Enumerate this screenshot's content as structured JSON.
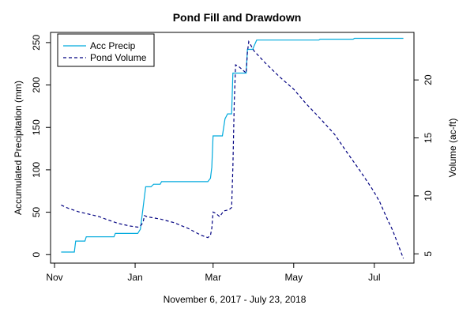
{
  "chart_data": {
    "type": "line",
    "title": "Pond Fill and Drawdown",
    "xlabel": "November 6, 2017 - July 23, 2018",
    "ylabel_left": "Accumulated Precipitation (mm)",
    "ylabel_right": "Volume (ac-ft)",
    "x_ticks": [
      "Nov",
      "Jan",
      "Mar",
      "May",
      "Jul"
    ],
    "x_tick_dates": [
      "2017-11-01",
      "2018-01-01",
      "2018-03-01",
      "2018-05-01",
      "2018-07-01"
    ],
    "y_left_ticks": [
      0,
      50,
      100,
      150,
      200,
      250
    ],
    "y_right_ticks": [
      5,
      10,
      15,
      20
    ],
    "xlim": [
      "2017-10-29",
      "2018-07-31"
    ],
    "ylim_left": [
      -10,
      262
    ],
    "ylim_right": [
      4.2,
      24.1
    ],
    "grid": false,
    "legend_position": "top-left",
    "series": [
      {
        "name": "Acc Precip",
        "axis": "left",
        "color": "#00aadd",
        "dash": "solid",
        "points": [
          [
            "2017-11-06",
            3
          ],
          [
            "2017-11-12",
            3
          ],
          [
            "2017-11-16",
            3
          ],
          [
            "2017-11-17",
            16
          ],
          [
            "2017-11-24",
            16
          ],
          [
            "2017-11-25",
            21
          ],
          [
            "2017-12-16",
            21
          ],
          [
            "2017-12-17",
            25
          ],
          [
            "2018-01-03",
            25
          ],
          [
            "2018-01-05",
            30
          ],
          [
            "2018-01-09",
            80
          ],
          [
            "2018-01-13",
            80
          ],
          [
            "2018-01-15",
            83
          ],
          [
            "2018-01-20",
            83
          ],
          [
            "2018-01-21",
            86
          ],
          [
            "2018-02-25",
            86
          ],
          [
            "2018-02-27",
            90
          ],
          [
            "2018-02-28",
            103
          ],
          [
            "2018-03-01",
            140
          ],
          [
            "2018-03-08",
            140
          ],
          [
            "2018-03-10",
            160
          ],
          [
            "2018-03-12",
            166
          ],
          [
            "2018-03-15",
            166
          ],
          [
            "2018-03-16",
            214
          ],
          [
            "2018-03-18",
            214
          ],
          [
            "2018-03-26",
            214
          ],
          [
            "2018-03-27",
            242
          ],
          [
            "2018-03-31",
            242
          ],
          [
            "2018-04-01",
            246
          ],
          [
            "2018-04-03",
            253
          ],
          [
            "2018-05-20",
            253
          ],
          [
            "2018-05-21",
            254
          ],
          [
            "2018-06-15",
            254
          ],
          [
            "2018-06-16",
            255
          ],
          [
            "2018-07-23",
            255
          ]
        ]
      },
      {
        "name": "Pond Volume",
        "axis": "right",
        "color": "#000080",
        "dash": "dashed",
        "points": [
          [
            "2017-11-06",
            9.2
          ],
          [
            "2017-11-12",
            8.9
          ],
          [
            "2017-11-20",
            8.6
          ],
          [
            "2017-11-28",
            8.4
          ],
          [
            "2017-12-05",
            8.2
          ],
          [
            "2017-12-12",
            7.9
          ],
          [
            "2017-12-20",
            7.6
          ],
          [
            "2017-12-28",
            7.4
          ],
          [
            "2018-01-03",
            7.3
          ],
          [
            "2018-01-05",
            7.4
          ],
          [
            "2018-01-07",
            7.7
          ],
          [
            "2018-01-08",
            8.3
          ],
          [
            "2018-01-10",
            8.2
          ],
          [
            "2018-01-20",
            8.0
          ],
          [
            "2018-01-30",
            7.7
          ],
          [
            "2018-02-10",
            7.2
          ],
          [
            "2018-02-20",
            6.6
          ],
          [
            "2018-02-25",
            6.4
          ],
          [
            "2018-02-27",
            6.6
          ],
          [
            "2018-02-28",
            7.2
          ],
          [
            "2018-03-01",
            8.6
          ],
          [
            "2018-03-03",
            8.5
          ],
          [
            "2018-03-06",
            8.2
          ],
          [
            "2018-03-09",
            8.7
          ],
          [
            "2018-03-13",
            8.8
          ],
          [
            "2018-03-15",
            9.0
          ],
          [
            "2018-03-16",
            12.5
          ],
          [
            "2018-03-17",
            18.0
          ],
          [
            "2018-03-18",
            21.3
          ],
          [
            "2018-03-20",
            21.2
          ],
          [
            "2018-03-24",
            20.8
          ],
          [
            "2018-03-26",
            20.6
          ],
          [
            "2018-03-27",
            22.4
          ],
          [
            "2018-03-28",
            23.3
          ],
          [
            "2018-04-01",
            22.5
          ],
          [
            "2018-04-10",
            21.4
          ],
          [
            "2018-04-20",
            20.3
          ],
          [
            "2018-05-01",
            19.2
          ],
          [
            "2018-05-10",
            18.0
          ],
          [
            "2018-05-20",
            16.8
          ],
          [
            "2018-06-01",
            15.3
          ],
          [
            "2018-06-10",
            13.8
          ],
          [
            "2018-06-20",
            12.2
          ],
          [
            "2018-06-30",
            10.5
          ],
          [
            "2018-07-05",
            9.5
          ],
          [
            "2018-07-10",
            8.2
          ],
          [
            "2018-07-15",
            7.0
          ],
          [
            "2018-07-20",
            5.5
          ],
          [
            "2018-07-23",
            4.6
          ]
        ]
      }
    ]
  }
}
